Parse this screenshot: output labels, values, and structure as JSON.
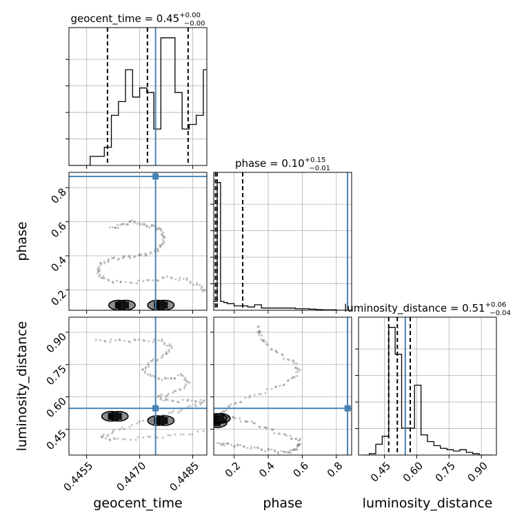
{
  "chart_data": {
    "type": "corner",
    "parameters": [
      "geocent_time",
      "phase",
      "luminosity_distance"
    ],
    "truths": {
      "geocent_time": 0.44745,
      "phase": 0.866,
      "luminosity_distance": 0.547
    },
    "panel_titles": {
      "geocent_time": {
        "prefix": "geocent_time = 0.45",
        "plus": "+0.00",
        "minus": "−0.00"
      },
      "phase": {
        "prefix": "phase = 0.10",
        "plus": "+0.15",
        "minus": "−0.01"
      },
      "luminosity_distance": {
        "prefix": "luminosity_distance = 0.51",
        "plus": "+0.06",
        "minus": "−0.04"
      }
    },
    "axis_labels": {
      "x": [
        "geocent_time",
        "phase",
        "luminosity_distance"
      ],
      "y": [
        "phase",
        "luminosity_distance"
      ]
    },
    "ranges": {
      "geocent_time": [
        0.445,
        0.4489
      ],
      "phase": [
        0.08,
        0.89
      ],
      "luminosity_distance": [
        0.33,
        0.97
      ]
    },
    "ticks": {
      "geocent_time": {
        "values": [
          0.4455,
          0.447,
          0.4485
        ],
        "labels": [
          "0.4455",
          "0.4470",
          "0.4485"
        ]
      },
      "phase": {
        "values": [
          0.2,
          0.4,
          0.6,
          0.8
        ],
        "labels": [
          "0.2",
          "0.4",
          "0.6",
          "0.8"
        ]
      },
      "luminosity_distance": {
        "values": [
          0.45,
          0.6,
          0.75,
          0.9
        ],
        "labels": [
          "0.45",
          "0.60",
          "0.75",
          "0.90"
        ]
      }
    },
    "histograms": {
      "geocent_time": {
        "edges": [
          0.445,
          0.4452,
          0.4454,
          0.4456,
          0.4458,
          0.446,
          0.4462,
          0.4464,
          0.4466,
          0.4468,
          0.447,
          0.4472,
          0.4474,
          0.4476,
          0.4478,
          0.448,
          0.4482,
          0.4484,
          0.4486,
          0.4488,
          0.449
        ],
        "counts": [
          0,
          0,
          0,
          2,
          2,
          4,
          11,
          14,
          21,
          15,
          17,
          16,
          8,
          28,
          28,
          16,
          8,
          9,
          11,
          21
        ],
        "quantiles": [
          0.44609,
          0.44722,
          0.44837
        ]
      },
      "phase": {
        "edges": [
          0.08,
          0.1,
          0.12,
          0.14,
          0.16,
          0.2,
          0.24,
          0.28,
          0.32,
          0.36,
          0.4,
          0.44,
          0.48,
          0.52,
          0.56,
          0.6,
          0.64,
          0.68,
          0.72,
          0.76,
          0.8,
          0.84,
          0.88
        ],
        "counts": [
          4,
          58,
          4,
          3.5,
          3,
          2,
          2,
          1.5,
          2.5,
          1,
          1,
          1,
          1,
          1,
          0.7,
          0.7,
          0.5,
          0.3,
          0.2,
          0.2,
          0,
          0
        ],
        "quantiles": [
          0.09,
          0.1,
          0.25
        ]
      },
      "luminosity_distance": {
        "edges": [
          0.35,
          0.38,
          0.41,
          0.44,
          0.47,
          0.5,
          0.53,
          0.56,
          0.59,
          0.62,
          0.65,
          0.68,
          0.71,
          0.74,
          0.77,
          0.8,
          0.83,
          0.86,
          0.89,
          0.92,
          0.95
        ],
        "counts": [
          0,
          1,
          8,
          14,
          95,
          75,
          20,
          20,
          52,
          15,
          10,
          7,
          5,
          4,
          3,
          4,
          2,
          1,
          0,
          0
        ],
        "quantiles": [
          0.47,
          0.51,
          0.57
        ]
      }
    },
    "samples_2d": {
      "phase_vs_geocent_time": {
        "scatter_path": [
          [
            0.4462,
            0.56
          ],
          [
            0.4465,
            0.58
          ],
          [
            0.4468,
            0.6
          ],
          [
            0.4471,
            0.58
          ],
          [
            0.4474,
            0.57
          ],
          [
            0.4476,
            0.55
          ],
          [
            0.4477,
            0.5
          ],
          [
            0.4476,
            0.45
          ],
          [
            0.4474,
            0.42
          ],
          [
            0.447,
            0.4
          ],
          [
            0.4466,
            0.39
          ],
          [
            0.4462,
            0.38
          ],
          [
            0.4459,
            0.35
          ],
          [
            0.4458,
            0.3
          ],
          [
            0.446,
            0.26
          ],
          [
            0.4465,
            0.24
          ],
          [
            0.4472,
            0.25
          ],
          [
            0.4478,
            0.27
          ],
          [
            0.4483,
            0.26
          ],
          [
            0.4487,
            0.22
          ],
          [
            0.4489,
            0.18
          ]
        ],
        "dense_core": [
          [
            0.4464,
            0.11
          ],
          [
            0.4466,
            0.11
          ],
          [
            0.4475,
            0.11
          ],
          [
            0.4477,
            0.11
          ]
        ]
      },
      "lumdist_vs_geocent_time": {
        "scatter_path": [
          [
            0.4458,
            0.86
          ],
          [
            0.4464,
            0.86
          ],
          [
            0.447,
            0.86
          ],
          [
            0.4476,
            0.86
          ],
          [
            0.4479,
            0.83
          ],
          [
            0.4477,
            0.79
          ],
          [
            0.4473,
            0.76
          ],
          [
            0.4471,
            0.72
          ],
          [
            0.4474,
            0.69
          ],
          [
            0.4478,
            0.68
          ],
          [
            0.4482,
            0.7
          ],
          [
            0.4484,
            0.66
          ],
          [
            0.448,
            0.62
          ],
          [
            0.4475,
            0.6
          ],
          [
            0.4478,
            0.58
          ],
          [
            0.4484,
            0.58
          ],
          [
            0.4489,
            0.58
          ],
          [
            0.4484,
            0.55
          ],
          [
            0.4478,
            0.52
          ],
          [
            0.447,
            0.48
          ],
          [
            0.4463,
            0.44
          ],
          [
            0.4459,
            0.41
          ],
          [
            0.4464,
            0.4
          ],
          [
            0.4472,
            0.41
          ],
          [
            0.448,
            0.42
          ],
          [
            0.4489,
            0.44
          ]
        ],
        "dense_core": [
          [
            0.4462,
            0.51
          ],
          [
            0.4464,
            0.51
          ],
          [
            0.4475,
            0.49
          ],
          [
            0.4477,
            0.49
          ]
        ]
      },
      "lumdist_vs_phase": {
        "scatter_path": [
          [
            0.11,
            0.38
          ],
          [
            0.16,
            0.38
          ],
          [
            0.24,
            0.37
          ],
          [
            0.33,
            0.36
          ],
          [
            0.42,
            0.35
          ],
          [
            0.5,
            0.34
          ],
          [
            0.55,
            0.35
          ],
          [
            0.58,
            0.37
          ],
          [
            0.58,
            0.4
          ],
          [
            0.5,
            0.42
          ],
          [
            0.4,
            0.45
          ],
          [
            0.3,
            0.48
          ],
          [
            0.2,
            0.5
          ],
          [
            0.12,
            0.52
          ],
          [
            0.18,
            0.56
          ],
          [
            0.3,
            0.6
          ],
          [
            0.44,
            0.64
          ],
          [
            0.54,
            0.68
          ],
          [
            0.58,
            0.72
          ],
          [
            0.55,
            0.76
          ],
          [
            0.46,
            0.8
          ],
          [
            0.38,
            0.85
          ],
          [
            0.35,
            0.89
          ],
          [
            0.34,
            0.93
          ]
        ],
        "dense_core": [
          [
            0.1,
            0.5
          ],
          [
            0.1,
            0.48
          ],
          [
            0.12,
            0.5
          ]
        ]
      }
    },
    "colors": {
      "truth": "#4682b4",
      "hist": "#000000",
      "grid": "#b0b0b0",
      "density": "#000000"
    }
  }
}
